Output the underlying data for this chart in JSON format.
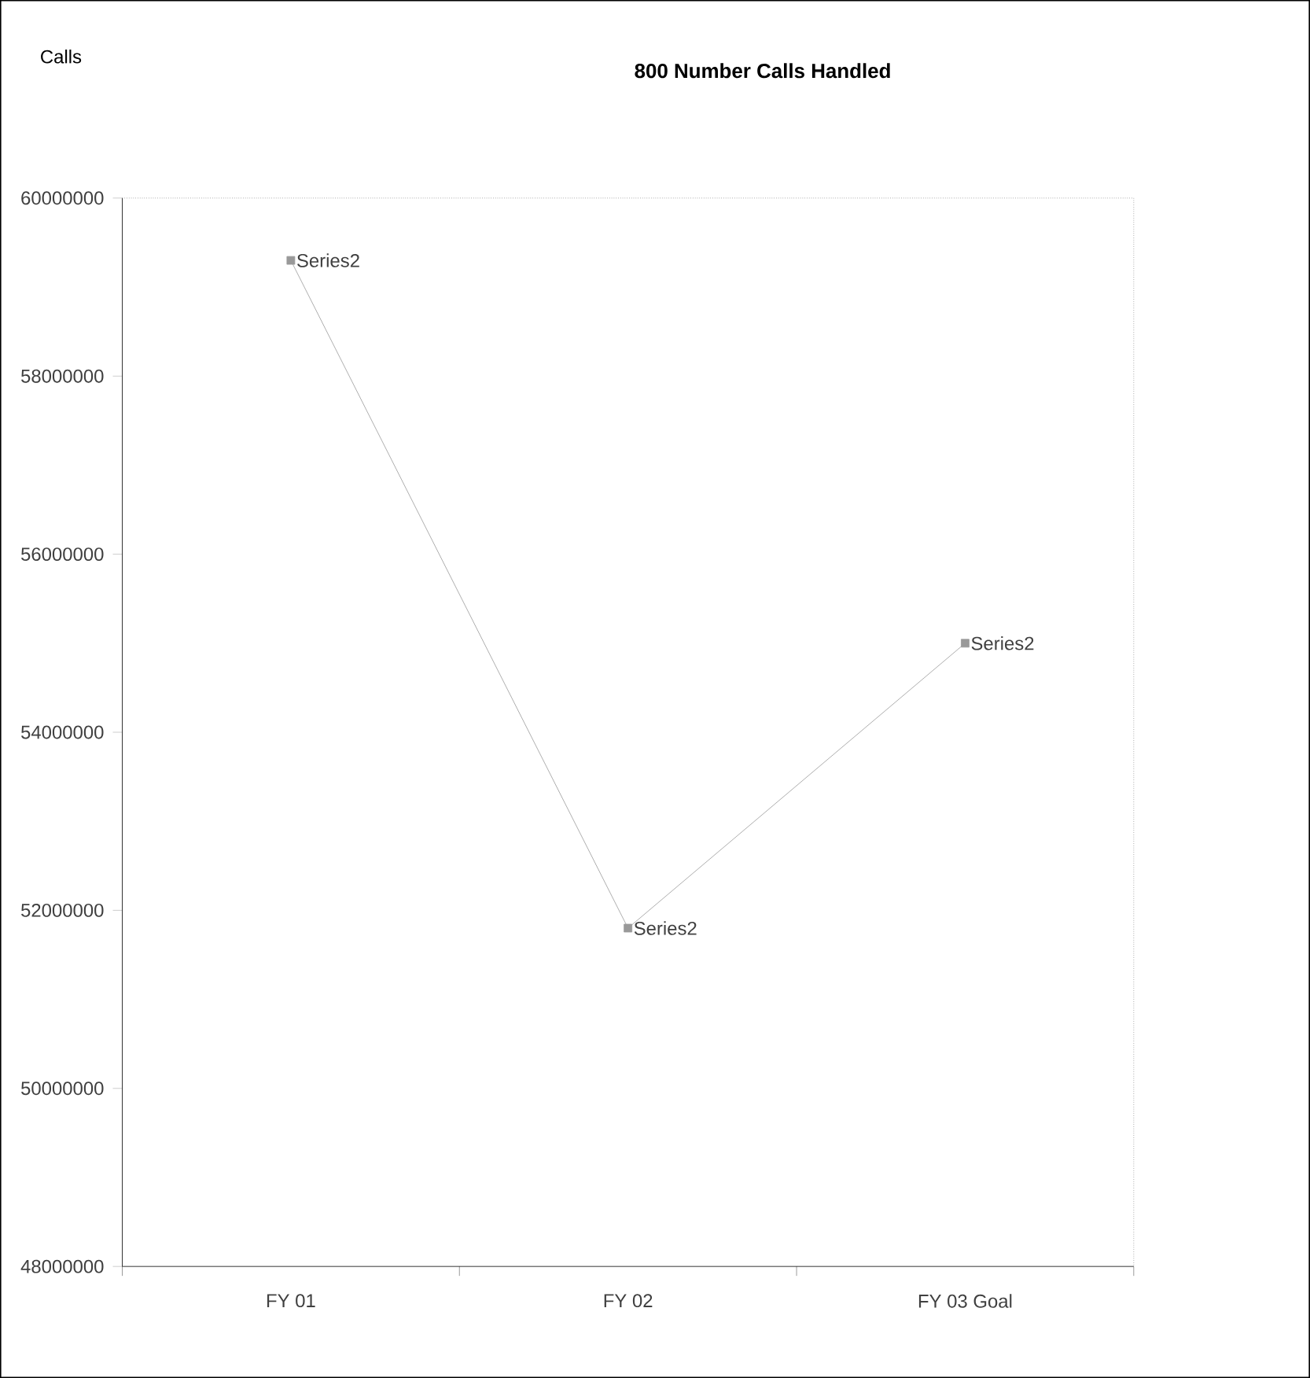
{
  "chart_data": {
    "type": "line",
    "title": "800 Number Calls Handled",
    "annotations": [
      "Calls"
    ],
    "categories": [
      "FY 01",
      "FY 02",
      "FY 03 Goal"
    ],
    "series": [
      {
        "name": "Series2",
        "color": "#999999",
        "values": [
          59300000,
          51800000,
          55000000
        ]
      }
    ],
    "ylim": [
      48000000,
      60000000
    ],
    "yticks": [
      48000000,
      50000000,
      52000000,
      54000000,
      56000000,
      58000000,
      60000000
    ],
    "grid": false,
    "marker": "square",
    "line_style": "solid"
  }
}
